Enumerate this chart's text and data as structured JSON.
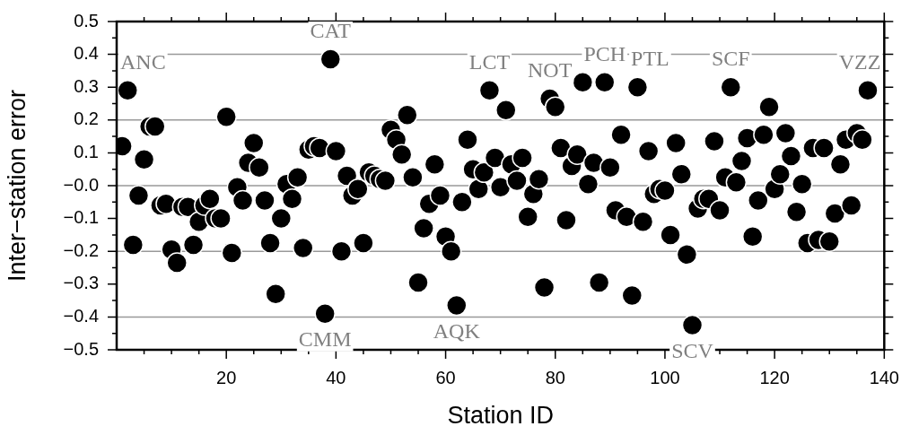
{
  "chart_data": {
    "type": "scatter",
    "xlabel": "Station ID",
    "ylabel": "Inter−station error",
    "x": [
      1,
      2,
      3,
      4,
      5,
      6,
      7,
      8,
      9,
      10,
      11,
      12,
      13,
      14,
      15,
      16,
      17,
      18,
      19,
      20,
      21,
      22,
      23,
      24,
      25,
      26,
      27,
      28,
      29,
      30,
      31,
      32,
      33,
      34,
      35,
      36,
      37,
      38,
      39,
      40,
      41,
      42,
      43,
      44,
      45,
      46,
      47,
      48,
      49,
      50,
      51,
      52,
      53,
      54,
      55,
      56,
      57,
      58,
      59,
      60,
      61,
      62,
      63,
      64,
      65,
      66,
      67,
      68,
      69,
      70,
      71,
      72,
      73,
      74,
      75,
      76,
      77,
      78,
      79,
      80,
      81,
      82,
      83,
      84,
      85,
      86,
      87,
      88,
      89,
      90,
      91,
      92,
      93,
      94,
      95,
      96,
      97,
      98,
      99,
      100,
      101,
      102,
      103,
      104,
      105,
      106,
      107,
      108,
      109,
      110,
      111,
      112,
      113,
      114,
      115,
      116,
      117,
      118,
      119,
      120,
      121,
      122,
      123,
      124,
      125,
      126,
      127,
      128,
      129,
      130,
      131,
      132,
      133,
      134,
      135,
      136,
      137
    ],
    "series": [
      {
        "color": "#000000",
        "values": [
          0.12,
          0.29,
          -0.18,
          -0.03,
          0.08,
          0.18,
          0.18,
          -0.06,
          -0.055,
          -0.195,
          -0.235,
          -0.065,
          -0.065,
          -0.18,
          -0.11,
          -0.06,
          -0.04,
          -0.1,
          -0.1,
          0.21,
          -0.205,
          -0.005,
          -0.045,
          0.07,
          0.13,
          0.055,
          -0.045,
          -0.175,
          -0.33,
          -0.1,
          0.005,
          -0.04,
          0.025,
          -0.19,
          0.11,
          0.12,
          0.115,
          -0.39,
          0.385,
          0.105,
          -0.2,
          0.03,
          -0.03,
          -0.01,
          -0.175,
          0.04,
          0.03,
          0.02,
          0.015,
          0.17,
          0.14,
          0.095,
          0.215,
          0.025,
          -0.295,
          -0.13,
          -0.055,
          0.065,
          -0.03,
          -0.155,
          -0.2,
          -0.365,
          -0.05,
          0.14,
          0.05,
          -0.01,
          0.04,
          0.29,
          0.085,
          -0.005,
          0.23,
          0.065,
          0.015,
          0.085,
          -0.095,
          -0.025,
          0.02,
          -0.31,
          0.265,
          0.24,
          0.115,
          -0.105,
          0.06,
          0.095,
          0.315,
          0.005,
          0.07,
          -0.295,
          0.315,
          0.055,
          -0.075,
          0.155,
          -0.095,
          -0.335,
          0.3,
          -0.11,
          0.105,
          -0.025,
          -0.01,
          -0.015,
          -0.15,
          0.13,
          0.035,
          -0.21,
          -0.425,
          -0.07,
          -0.04,
          -0.04,
          0.135,
          -0.075,
          0.025,
          0.3,
          0.01,
          0.075,
          0.145,
          -0.155,
          -0.045,
          0.155,
          0.24,
          -0.01,
          0.035,
          0.16,
          0.09,
          -0.08,
          0.005,
          -0.175,
          0.115,
          -0.165,
          0.115,
          -0.17,
          -0.085,
          0.065,
          0.14,
          -0.06,
          0.16,
          0.14,
          0.29
        ]
      }
    ],
    "xlim": [
      0,
      140
    ],
    "xticks": [
      {
        "value": 5,
        "label": null
      },
      {
        "value": 10,
        "label": null
      },
      {
        "value": 15,
        "label": null
      },
      20,
      {
        "value": 25,
        "label": null
      },
      {
        "value": 30,
        "label": null
      },
      {
        "value": 35,
        "label": null
      },
      40,
      {
        "value": 45,
        "label": null
      },
      {
        "value": 50,
        "label": null
      },
      {
        "value": 55,
        "label": null
      },
      60,
      {
        "value": 65,
        "label": null
      },
      {
        "value": 70,
        "label": null
      },
      {
        "value": 75,
        "label": null
      },
      80,
      {
        "value": 85,
        "label": null
      },
      {
        "value": 90,
        "label": null
      },
      {
        "value": 95,
        "label": null
      },
      100,
      {
        "value": 105,
        "label": null
      },
      {
        "value": 110,
        "label": null
      },
      {
        "value": 115,
        "label": null
      },
      120,
      {
        "value": 125,
        "label": null
      },
      {
        "value": 130,
        "label": null
      },
      {
        "value": 135,
        "label": null
      },
      140
    ],
    "ylim": [
      -0.5,
      0.5
    ],
    "yticks": [
      {
        "value": -0.5,
        "label": "−0.5"
      },
      {
        "value": -0.45,
        "label": null
      },
      {
        "value": -0.4,
        "label": "−0.4"
      },
      {
        "value": -0.35,
        "label": null
      },
      {
        "value": -0.3,
        "label": "−0.3"
      },
      {
        "value": -0.25,
        "label": null
      },
      {
        "value": -0.2,
        "label": "−0.2"
      },
      {
        "value": -0.15,
        "label": null
      },
      {
        "value": -0.1,
        "label": "−0.1"
      },
      {
        "value": -0.05,
        "label": null
      },
      {
        "value": 0,
        "label": "−0.0"
      },
      {
        "value": 0.05,
        "label": null
      },
      {
        "value": 0.1,
        "label": "0.1"
      },
      {
        "value": 0.15,
        "label": null
      },
      {
        "value": 0.2,
        "label": "0.2"
      },
      {
        "value": 0.25,
        "label": null
      },
      {
        "value": 0.3,
        "label": "0.3"
      },
      {
        "value": 0.35,
        "label": null
      },
      {
        "value": 0.4,
        "label": "0.4"
      },
      {
        "value": 0.45,
        "label": null
      },
      {
        "value": 0.5,
        "label": "0.5"
      }
    ],
    "grid": "y",
    "marker": "circle",
    "legend": false,
    "annotations": [
      {
        "text": "ANC",
        "x": 2,
        "y": 0.29
      },
      {
        "text": "CAT",
        "x": 39,
        "y": 0.385
      },
      {
        "text": "CMM",
        "x": 38,
        "y": -0.39
      },
      {
        "text": "AQK",
        "x": 62,
        "y": -0.365
      },
      {
        "text": "LCT",
        "x": 68,
        "y": 0.29
      },
      {
        "text": "NOT",
        "x": 79,
        "y": 0.265
      },
      {
        "text": "PCH",
        "x": 89,
        "y": 0.315
      },
      {
        "text": "PTL",
        "x": 95,
        "y": 0.3
      },
      {
        "text": "SCF",
        "x": 112,
        "y": 0.3
      },
      {
        "text": "SCV",
        "x": 105,
        "y": -0.425
      },
      {
        "text": "VZZ",
        "x": 137,
        "y": 0.29
      }
    ]
  }
}
